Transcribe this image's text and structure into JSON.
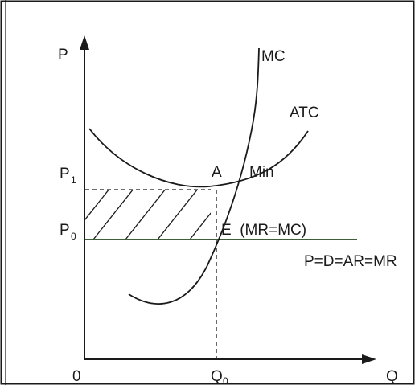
{
  "axes": {
    "y_label": "P",
    "x_label": "Q",
    "origin_label": "0"
  },
  "price_labels": {
    "p1_main": "P",
    "p1_sub": "1",
    "p0_main": "P",
    "p0_sub": "0"
  },
  "quantity_label": {
    "main": "Q",
    "sub": "0"
  },
  "curves": {
    "mc": "MC",
    "atc": "ATC",
    "demand": "P=D=AR=MR"
  },
  "points": {
    "a": "A",
    "min": "Min",
    "e": "E  (MR=MC)"
  },
  "colors": {
    "ink": "#1a1a1a",
    "demand_line": "#3f5f3a",
    "background": "#ffffff"
  }
}
